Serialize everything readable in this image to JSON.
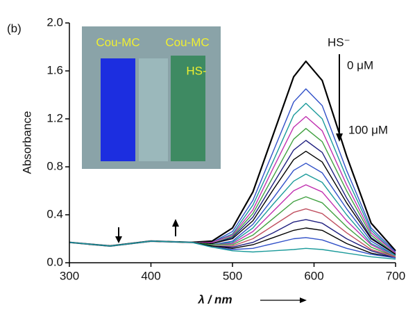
{
  "chart_data": {
    "type": "line",
    "panel_label": "(b)",
    "xlabel": "λ / nm",
    "ylabel": "Absorbance",
    "annotations": {
      "analyte": "HS⁻",
      "start": "0 μM",
      "end": "100 μM"
    },
    "inset": {
      "left_label": "Cou-MC",
      "right_label": "Cou-MC",
      "right_sublabel": "HS-"
    },
    "x": [
      300,
      350,
      400,
      450,
      475,
      500,
      525,
      550,
      575,
      590,
      610,
      640,
      670,
      700
    ],
    "xlim": [
      300,
      700
    ],
    "xticks": [
      300,
      400,
      500,
      600,
      700
    ],
    "ylim": [
      0,
      2.0
    ],
    "yticks": [
      {
        "value": 0,
        "label": "0.0"
      },
      {
        "value": 0.4,
        "label": "0.4"
      },
      {
        "value": 0.8,
        "label": "0.8"
      },
      {
        "value": 1.2,
        "label": "1.2"
      },
      {
        "value": 1.6,
        "label": "1.6"
      },
      {
        "value": 2.0,
        "label": "2.0"
      }
    ],
    "series": [
      {
        "color": "#000000",
        "values": [
          0.17,
          0.14,
          0.18,
          0.17,
          0.18,
          0.29,
          0.59,
          1.07,
          1.55,
          1.68,
          1.52,
          0.89,
          0.33,
          0.1
        ]
      },
      {
        "color": "#3050c8",
        "values": [
          0.17,
          0.14,
          0.18,
          0.17,
          0.17,
          0.26,
          0.52,
          0.93,
          1.34,
          1.45,
          1.31,
          0.77,
          0.29,
          0.09
        ]
      },
      {
        "color": "#1a9a9a",
        "values": [
          0.17,
          0.14,
          0.18,
          0.17,
          0.17,
          0.24,
          0.48,
          0.85,
          1.23,
          1.33,
          1.2,
          0.71,
          0.27,
          0.08
        ]
      },
      {
        "color": "#c030b0",
        "values": [
          0.17,
          0.14,
          0.18,
          0.17,
          0.17,
          0.23,
          0.44,
          0.79,
          1.13,
          1.22,
          1.1,
          0.65,
          0.25,
          0.08
        ]
      },
      {
        "color": "#40a040",
        "values": [
          0.17,
          0.14,
          0.18,
          0.17,
          0.16,
          0.22,
          0.41,
          0.72,
          1.03,
          1.12,
          1.01,
          0.6,
          0.23,
          0.07
        ]
      },
      {
        "color": "#202080",
        "values": [
          0.17,
          0.14,
          0.18,
          0.17,
          0.16,
          0.21,
          0.38,
          0.66,
          0.94,
          1.02,
          0.92,
          0.54,
          0.21,
          0.07
        ]
      },
      {
        "color": "#000000",
        "values": [
          0.17,
          0.14,
          0.18,
          0.17,
          0.16,
          0.2,
          0.35,
          0.61,
          0.86,
          0.93,
          0.84,
          0.5,
          0.2,
          0.07
        ]
      },
      {
        "color": "#3050c8",
        "values": [
          0.17,
          0.14,
          0.18,
          0.17,
          0.15,
          0.18,
          0.32,
          0.54,
          0.77,
          0.83,
          0.75,
          0.45,
          0.18,
          0.06
        ]
      },
      {
        "color": "#1a9a9a",
        "values": [
          0.17,
          0.14,
          0.18,
          0.17,
          0.15,
          0.17,
          0.29,
          0.49,
          0.68,
          0.74,
          0.67,
          0.4,
          0.16,
          0.06
        ]
      },
      {
        "color": "#c030b0",
        "values": [
          0.17,
          0.14,
          0.18,
          0.17,
          0.15,
          0.16,
          0.26,
          0.43,
          0.6,
          0.65,
          0.59,
          0.35,
          0.15,
          0.05
        ]
      },
      {
        "color": "#40a040",
        "values": [
          0.17,
          0.14,
          0.18,
          0.17,
          0.15,
          0.15,
          0.23,
          0.37,
          0.51,
          0.55,
          0.5,
          0.3,
          0.13,
          0.05
        ]
      },
      {
        "color": "#c05060",
        "values": [
          0.17,
          0.14,
          0.18,
          0.17,
          0.14,
          0.14,
          0.2,
          0.31,
          0.42,
          0.45,
          0.41,
          0.25,
          0.11,
          0.05
        ]
      },
      {
        "color": "#202080",
        "values": [
          0.17,
          0.14,
          0.18,
          0.17,
          0.14,
          0.13,
          0.17,
          0.25,
          0.34,
          0.36,
          0.33,
          0.2,
          0.1,
          0.04
        ]
      },
      {
        "color": "#000000",
        "values": [
          0.17,
          0.14,
          0.18,
          0.17,
          0.14,
          0.12,
          0.15,
          0.21,
          0.27,
          0.29,
          0.27,
          0.16,
          0.08,
          0.04
        ]
      },
      {
        "color": "#3050c8",
        "values": [
          0.17,
          0.14,
          0.18,
          0.17,
          0.13,
          0.11,
          0.12,
          0.16,
          0.2,
          0.21,
          0.19,
          0.12,
          0.07,
          0.04
        ]
      },
      {
        "color": "#1a9a9a",
        "values": [
          0.17,
          0.14,
          0.18,
          0.17,
          0.13,
          0.1,
          0.09,
          0.1,
          0.11,
          0.12,
          0.11,
          0.08,
          0.05,
          0.03
        ]
      }
    ]
  }
}
